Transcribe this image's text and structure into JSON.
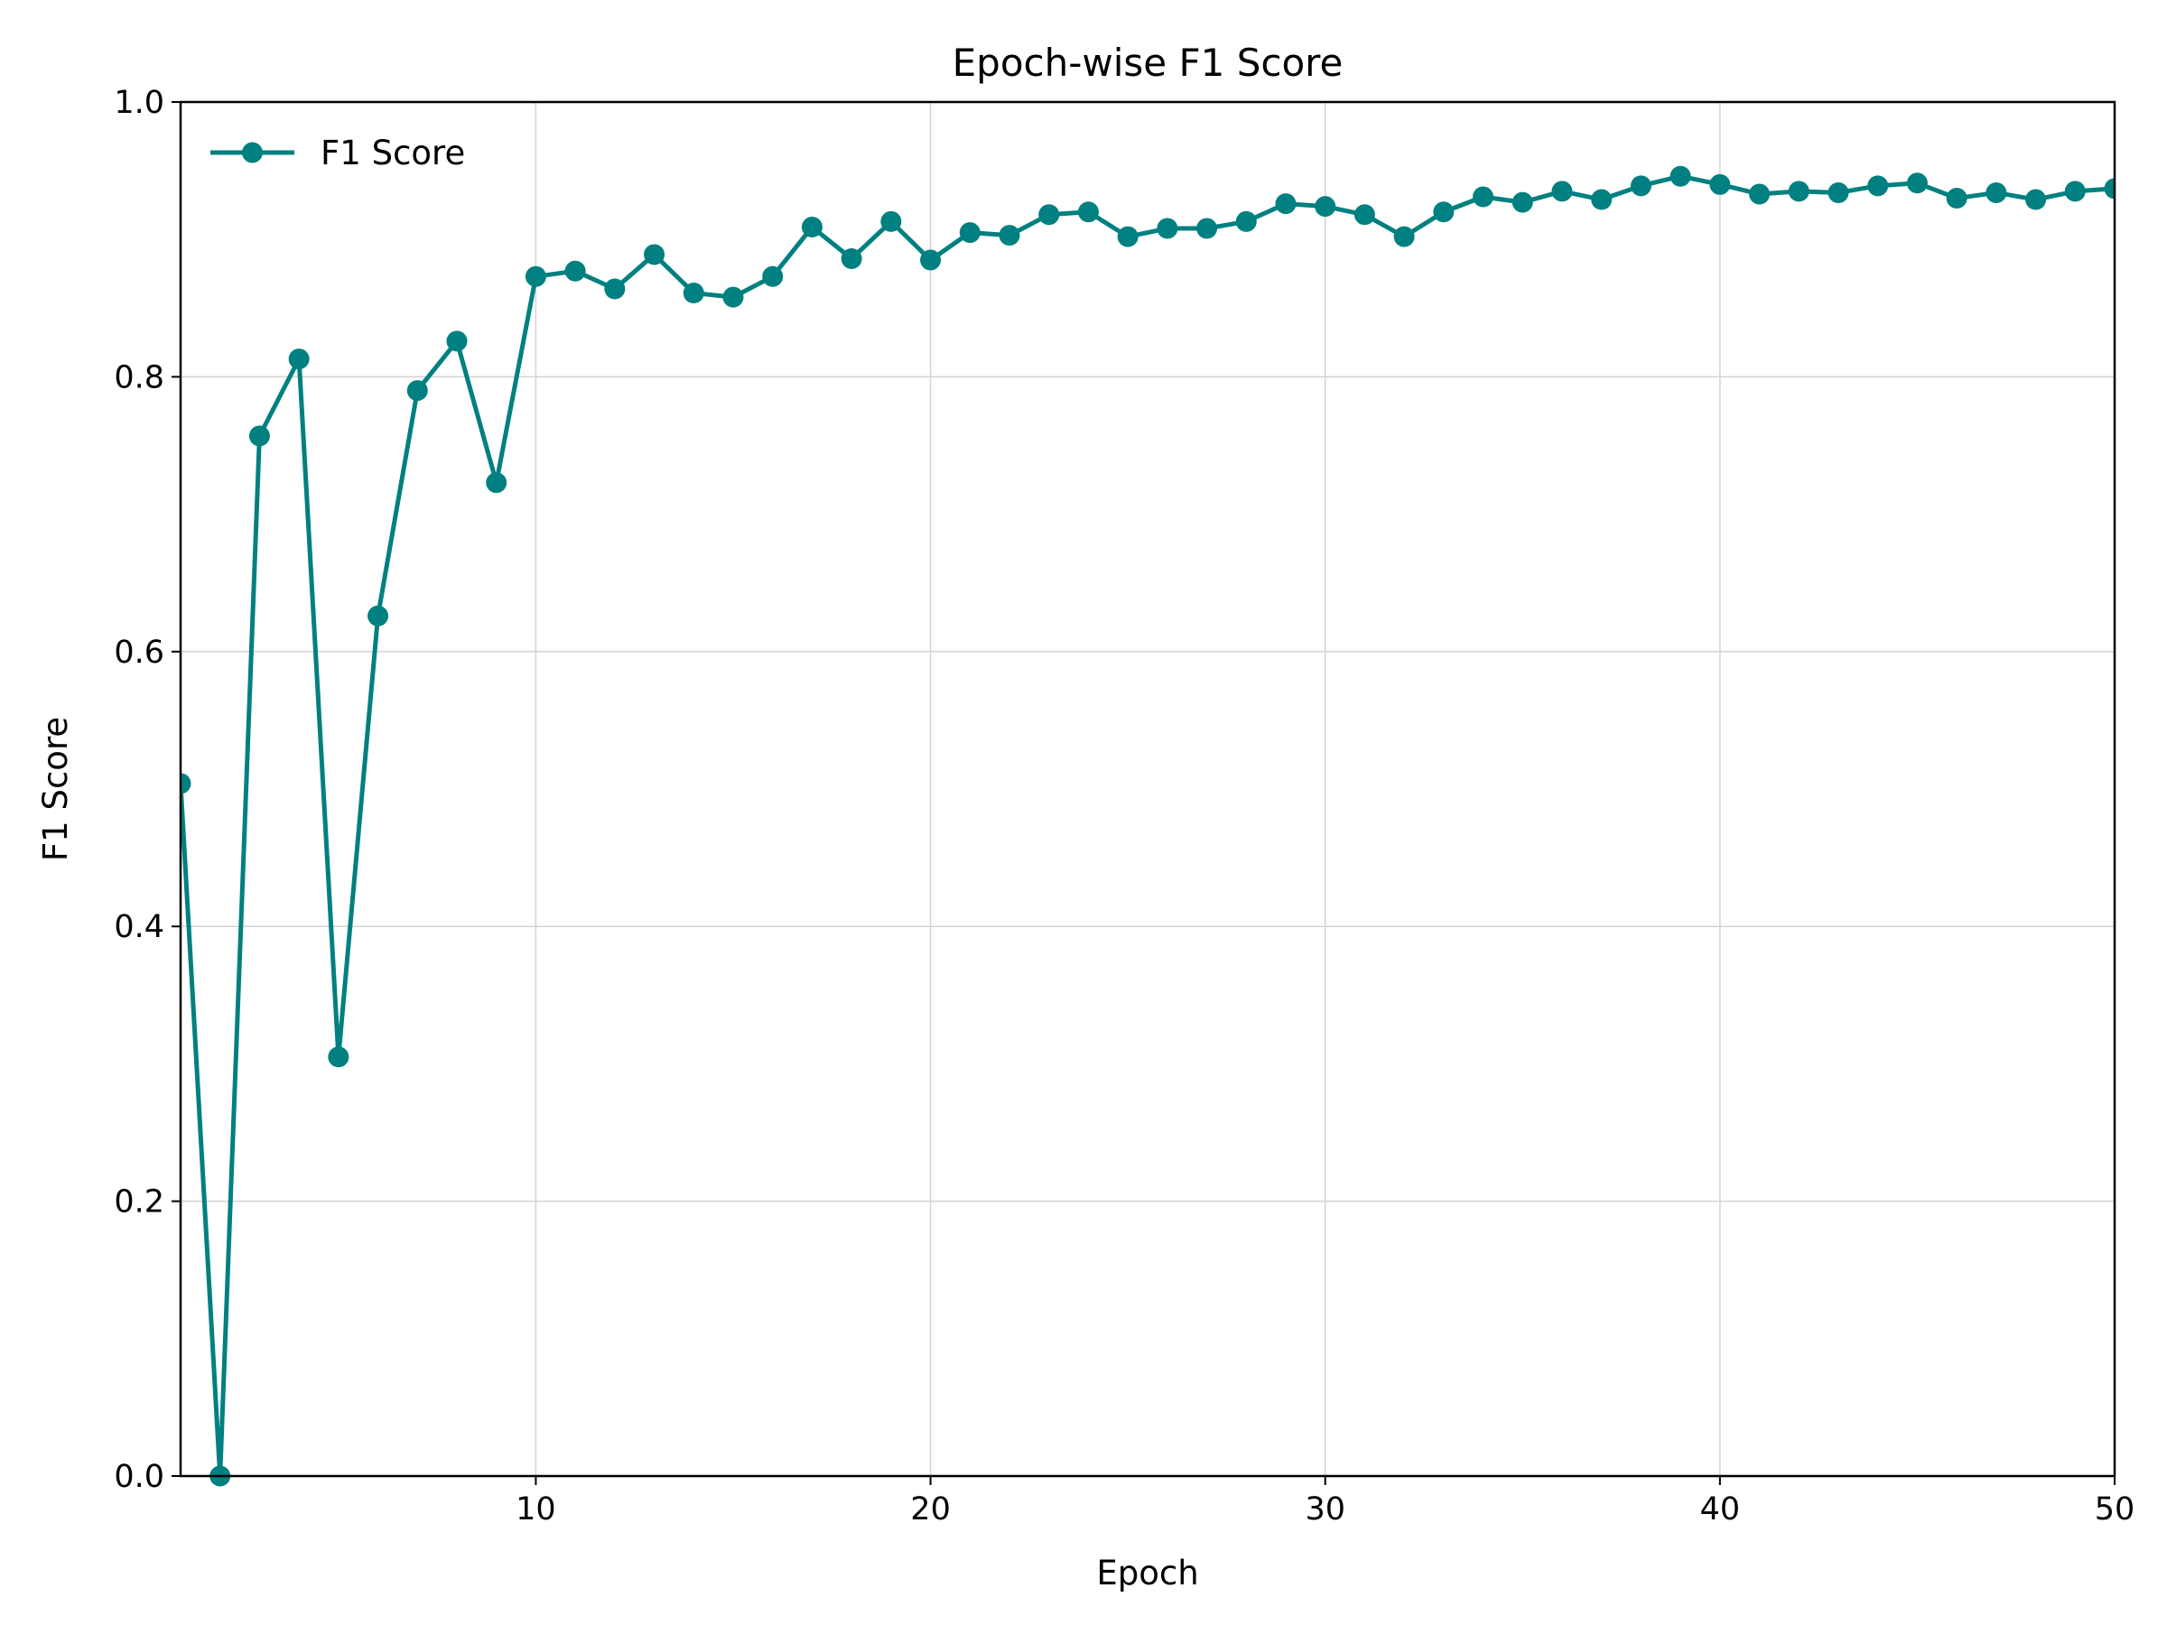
{
  "chart_data": {
    "type": "line",
    "title": "Epoch-wise F1 Score",
    "xlabel": "Epoch",
    "ylabel": "F1 Score",
    "xlim": [
      1,
      50
    ],
    "ylim": [
      0.0,
      1.0
    ],
    "x_ticks": [
      10,
      20,
      30,
      40,
      50
    ],
    "y_ticks": [
      0.0,
      0.2,
      0.4,
      0.6,
      0.8,
      1.0
    ],
    "x_tick_labels": [
      "10",
      "20",
      "30",
      "40",
      "50"
    ],
    "y_tick_labels": [
      "0.0",
      "0.2",
      "0.4",
      "0.6",
      "0.8",
      "1.0"
    ],
    "grid": true,
    "legend_position": "upper-left",
    "series": [
      {
        "name": "F1 Score",
        "color": "#008080",
        "marker": "circle",
        "x": [
          1,
          2,
          3,
          4,
          5,
          6,
          7,
          8,
          9,
          10,
          11,
          12,
          13,
          14,
          15,
          16,
          17,
          18,
          19,
          20,
          21,
          22,
          23,
          24,
          25,
          26,
          27,
          28,
          29,
          30,
          31,
          32,
          33,
          34,
          35,
          36,
          37,
          38,
          39,
          40,
          41,
          42,
          43,
          44,
          45,
          46,
          47,
          48,
          49,
          50
        ],
        "values": [
          0.504,
          0.0,
          0.757,
          0.813,
          0.305,
          0.626,
          0.79,
          0.826,
          0.723,
          0.873,
          0.877,
          0.864,
          0.889,
          0.861,
          0.858,
          0.873,
          0.909,
          0.886,
          0.913,
          0.885,
          0.905,
          0.903,
          0.918,
          0.92,
          0.902,
          0.908,
          0.908,
          0.913,
          0.926,
          0.924,
          0.918,
          0.902,
          0.92,
          0.931,
          0.927,
          0.935,
          0.929,
          0.939,
          0.946,
          0.94,
          0.933,
          0.935,
          0.934,
          0.939,
          0.941,
          0.93,
          0.934,
          0.929,
          0.935,
          0.937
        ]
      }
    ]
  }
}
